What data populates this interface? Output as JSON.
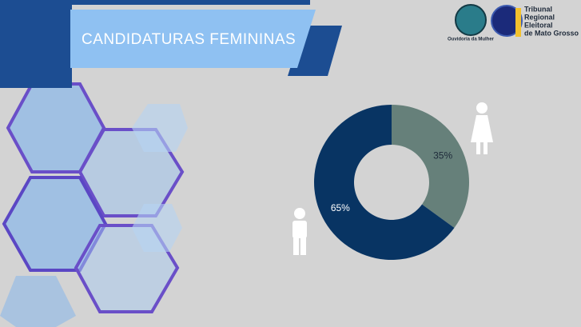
{
  "chart_data": {
    "type": "donut",
    "title": "CANDIDATURAS FEMININAS",
    "values": [
      35,
      65
    ],
    "value_labels": [
      "35%",
      "65%"
    ],
    "colors": [
      "#66807a",
      "#083463"
    ]
  },
  "logos": {
    "ouvidoria": "Ouvidoria da Mulher",
    "tre": [
      "Tribunal",
      "Regional",
      "Eleitoral",
      "de Mato Grosso"
    ]
  }
}
